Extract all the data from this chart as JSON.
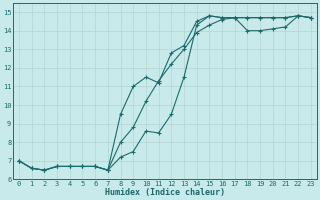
{
  "title": "",
  "xlabel": "Humidex (Indice chaleur)",
  "ylabel": "",
  "background_color": "#c8eaea",
  "grid_color": "#b8d8d8",
  "line_color": "#1a6b6b",
  "xlim": [
    -0.5,
    23.5
  ],
  "ylim": [
    6.0,
    15.5
  ],
  "yticks": [
    6,
    7,
    8,
    9,
    10,
    11,
    12,
    13,
    14,
    15
  ],
  "xticks": [
    0,
    1,
    2,
    3,
    4,
    5,
    6,
    7,
    8,
    9,
    10,
    11,
    12,
    13,
    14,
    15,
    16,
    17,
    18,
    19,
    20,
    21,
    22,
    23
  ],
  "series": [
    {
      "x": [
        0,
        1,
        2,
        3,
        4,
        5,
        6,
        7,
        8,
        9,
        10,
        11,
        12,
        13,
        14,
        15,
        16,
        17,
        18,
        19,
        20,
        21,
        22,
        23
      ],
      "y": [
        7.0,
        6.6,
        6.5,
        6.7,
        6.7,
        6.7,
        6.7,
        6.5,
        7.2,
        7.5,
        8.6,
        8.5,
        9.5,
        11.5,
        14.3,
        14.8,
        14.7,
        14.7,
        14.0,
        14.0,
        14.1,
        14.2,
        14.8,
        14.7
      ]
    },
    {
      "x": [
        0,
        1,
        2,
        3,
        4,
        5,
        6,
        7,
        8,
        9,
        10,
        11,
        12,
        13,
        14,
        15,
        16,
        17,
        18,
        19,
        20,
        21,
        22,
        23
      ],
      "y": [
        7.0,
        6.6,
        6.5,
        6.7,
        6.7,
        6.7,
        6.7,
        6.5,
        9.5,
        11.0,
        11.5,
        11.2,
        12.8,
        13.2,
        14.5,
        14.8,
        14.7,
        14.7,
        14.7,
        14.7,
        14.7,
        14.7,
        14.8,
        14.7
      ]
    },
    {
      "x": [
        0,
        1,
        2,
        3,
        4,
        5,
        6,
        7,
        8,
        9,
        10,
        11,
        12,
        13,
        14,
        15,
        16,
        17,
        18,
        19,
        20,
        21,
        22,
        23
      ],
      "y": [
        7.0,
        6.6,
        6.5,
        6.7,
        6.7,
        6.7,
        6.7,
        6.5,
        8.0,
        8.8,
        10.2,
        11.3,
        12.2,
        13.0,
        13.9,
        14.3,
        14.6,
        14.7,
        14.7,
        14.7,
        14.7,
        14.7,
        14.8,
        14.7
      ]
    }
  ]
}
